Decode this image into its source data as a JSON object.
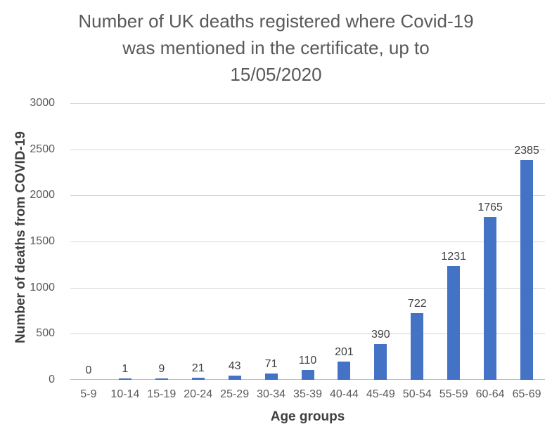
{
  "title": {
    "line1": "Number of UK deaths registered where Covid-19",
    "line2": "was mentioned in the certificate, up to",
    "line3": "15/05/2020"
  },
  "colors": {
    "bar": "#4472C4",
    "gridline": "#D6D6D6",
    "axis_line": "#BFBFBF",
    "title_text": "#595959",
    "data_label_text": "#404040"
  },
  "chart_data": {
    "type": "bar",
    "title": "Number of UK deaths registered where Covid-19 was mentioned in the certificate, up to 15/05/2020",
    "categories": [
      "5-9",
      "10-14",
      "15-19",
      "20-24",
      "25-29",
      "30-34",
      "35-39",
      "40-44",
      "45-49",
      "50-54",
      "55-59",
      "60-64",
      "65-69"
    ],
    "values": [
      0,
      1,
      9,
      21,
      43,
      71,
      110,
      201,
      390,
      722,
      1231,
      1765,
      2385
    ],
    "xlabel": "Age groups",
    "ylabel": "Number of deaths from COVID-19",
    "ylim": [
      0,
      3000
    ],
    "yticks": [
      0,
      500,
      1000,
      1500,
      2000,
      2500,
      3000
    ],
    "grid": true,
    "legend": false,
    "data_labels": true
  }
}
